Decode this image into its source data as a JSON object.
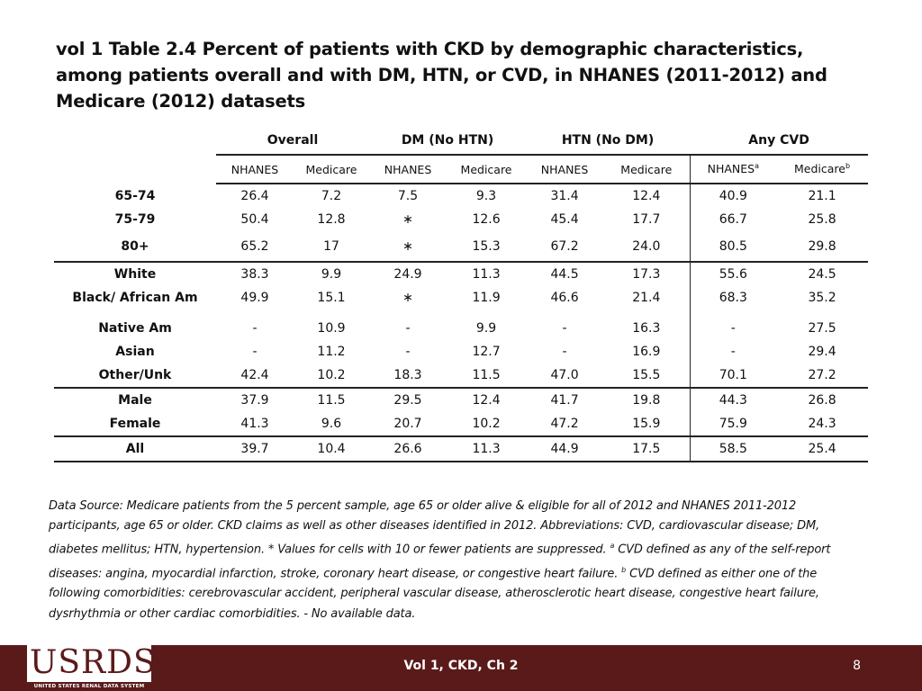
{
  "title": "vol 1 Table 2.4 Percent of patients with CKD by demographic characteristics, among patients overall and with DM, HTN, or CVD, in NHANES (2011-2012) and Medicare (2012) datasets",
  "table": {
    "groups": [
      "Overall",
      "DM (No HTN)",
      "HTN (No DM)",
      "Any CVD"
    ],
    "subheaders": [
      "NHANES",
      "Medicare",
      "NHANES",
      "Medicare",
      "NHANES",
      "Medicare",
      "NHANES",
      "Medicare"
    ],
    "sup_a": "a",
    "sup_b": "b",
    "rows": [
      {
        "label": "65-74",
        "values": [
          "26.4",
          "7.2",
          "7.5",
          "9.3",
          "31.4",
          "12.4",
          "40.9",
          "21.1"
        ]
      },
      {
        "label": "75-79",
        "values": [
          "50.4",
          "12.8",
          "∗",
          "12.6",
          "45.4",
          "17.7",
          "66.7",
          "25.8"
        ]
      },
      {
        "label": "80+",
        "values": [
          "65.2",
          "17",
          "∗",
          "15.3",
          "67.2",
          "24.0",
          "80.5",
          "29.8"
        ]
      },
      {
        "label": "White",
        "values": [
          "38.3",
          "9.9",
          "24.9",
          "11.3",
          "44.5",
          "17.3",
          "55.6",
          "24.5"
        ]
      },
      {
        "label": "Black/ African Am",
        "values": [
          "49.9",
          "15.1",
          "∗",
          "11.9",
          "46.6",
          "21.4",
          "68.3",
          "35.2"
        ]
      },
      {
        "label": "Native Am",
        "values": [
          "-",
          "10.9",
          "-",
          "9.9",
          "-",
          "16.3",
          "-",
          "27.5"
        ]
      },
      {
        "label": "Asian",
        "values": [
          "-",
          "11.2",
          "-",
          "12.7",
          "-",
          "16.9",
          "-",
          "29.4"
        ]
      },
      {
        "label": "Other/Unk",
        "values": [
          "42.4",
          "10.2",
          "18.3",
          "11.5",
          "47.0",
          "15.5",
          "70.1",
          "27.2"
        ]
      },
      {
        "label": "Male",
        "values": [
          "37.9",
          "11.5",
          "29.5",
          "12.4",
          "41.7",
          "19.8",
          "44.3",
          "26.8"
        ]
      },
      {
        "label": "Female",
        "values": [
          "41.3",
          "9.6",
          "20.7",
          "10.2",
          "47.2",
          "15.9",
          "75.9",
          "24.3"
        ]
      },
      {
        "label": "All",
        "values": [
          "39.7",
          "10.4",
          "26.6",
          "11.3",
          "44.9",
          "17.5",
          "58.5",
          "25.4"
        ]
      }
    ]
  },
  "note": {
    "part1": "Data Source: Medicare patients from the 5 percent sample, age 65 or older alive & eligible for all of 2012 and NHANES 2011-2012 participants, age 65 or older. CKD claims as well as other diseases identified in 2012. Abbreviations: CVD, cardiovascular disease; DM, diabetes mellitus; HTN, hypertension. * Values for cells with 10 or fewer patients are suppressed.",
    "sup_a": "a",
    "part2": " CVD defined as any of the self-report diseases: angina, myocardial infarction, stroke, coronary heart disease, or congestive heart failure.",
    "sup_b": "b",
    "part3": " CVD defined as either one of the following comorbidities: cerebrovascular accident, peripheral vascular disease, atherosclerotic heart disease, congestive heart failure, dysrhythmia or other cardiac comorbidities. - No available data."
  },
  "footer": {
    "logo_text": "USRDS",
    "logo_subtext": "UNITED STATES RENAL DATA SYSTEM",
    "center_text": "Vol 1, CKD, Ch 2",
    "page_number": "8",
    "colors": {
      "footer_bar": "#5b1a1a",
      "logo": "#5b1a1a"
    }
  }
}
